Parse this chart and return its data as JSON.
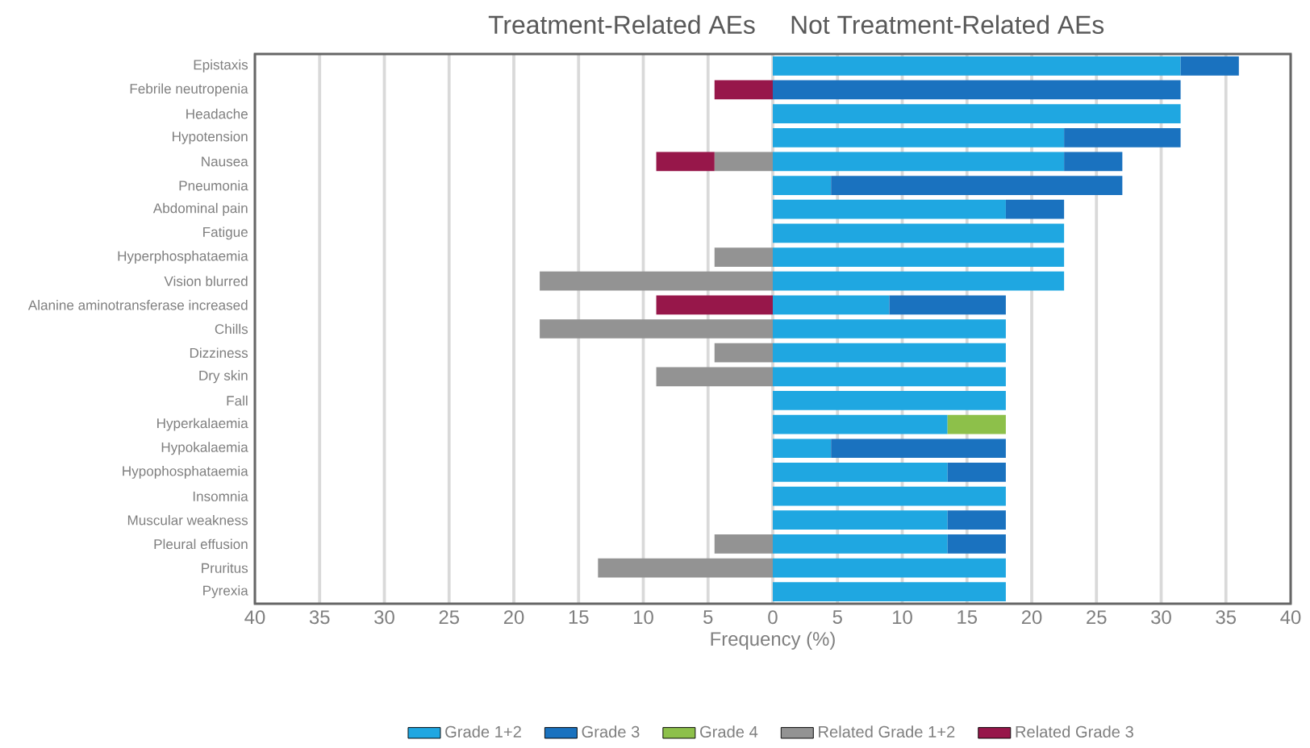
{
  "chart_data": {
    "type": "bar",
    "orientation": "horizontal",
    "stacked": true,
    "annotations": [
      "Treatment-Related AEs",
      "Not Treatment-Related AEs"
    ],
    "xlabel": "Frequency (%)",
    "categories": [
      "Epistaxis",
      "Febrile neutropenia",
      "Headache",
      "Hypotension",
      "Nausea",
      "Pneumonia",
      "Abdominal pain",
      "Fatigue",
      "Hyperphosphataemia",
      "Vision blurred",
      "Alanine aminotransferase increased",
      "Chills",
      "Dizziness",
      "Dry skin",
      "Fall",
      "Hyperkalaemia",
      "Hypokalaemia",
      "Hypophosphataemia",
      "Insomnia",
      "Muscular weakness",
      "Pleural effusion",
      "Pruritus",
      "Pyrexia"
    ],
    "series": [
      {
        "name": "Grade 1+2",
        "color": "#1fa7e1",
        "values": [
          31.5,
          null,
          31.5,
          22.5,
          22.5,
          4.5,
          18,
          22.5,
          22.5,
          22.5,
          9,
          18,
          18,
          18,
          18,
          13.5,
          4.5,
          13.5,
          18,
          13.5,
          13.5,
          18,
          18
        ]
      },
      {
        "name": "Grade 3",
        "color": "#1a72bf",
        "values": [
          4.5,
          31.5,
          null,
          9,
          4.5,
          22.5,
          4.5,
          null,
          null,
          null,
          9,
          null,
          null,
          null,
          null,
          null,
          13.5,
          4.5,
          null,
          4.5,
          4.5,
          null,
          null
        ]
      },
      {
        "name": "Grade 4",
        "color": "#8dc04a",
        "values": [
          null,
          null,
          null,
          null,
          null,
          null,
          null,
          null,
          null,
          null,
          null,
          null,
          null,
          null,
          null,
          4.5,
          null,
          null,
          null,
          null,
          null,
          null,
          null
        ]
      },
      {
        "name": "Related Grade 1+2",
        "color": "#939393",
        "values": [
          null,
          null,
          null,
          null,
          -4.5,
          null,
          null,
          null,
          -4.5,
          -18,
          null,
          -18,
          -4.5,
          -9,
          null,
          null,
          null,
          null,
          null,
          null,
          -4.5,
          -13.5,
          null
        ]
      },
      {
        "name": "Related Grade 3",
        "color": "#97174a",
        "values": [
          null,
          -4.5,
          null,
          null,
          -4.5,
          null,
          null,
          null,
          null,
          null,
          -9,
          null,
          null,
          null,
          null,
          null,
          null,
          null,
          null,
          null,
          null,
          null,
          null
        ]
      }
    ],
    "xlim": [
      -40,
      40
    ],
    "xticks": [
      {
        "value": -40,
        "label": "40"
      },
      {
        "value": -35,
        "label": "35"
      },
      {
        "value": -30,
        "label": "30"
      },
      {
        "value": -25,
        "label": "25"
      },
      {
        "value": -20,
        "label": "20"
      },
      {
        "value": -15,
        "label": "15"
      },
      {
        "value": -10,
        "label": "10"
      },
      {
        "value": -5,
        "label": "5"
      },
      0,
      5,
      10,
      15,
      20,
      25,
      30,
      35,
      40
    ],
    "grid": "x",
    "legend": "bottom"
  }
}
